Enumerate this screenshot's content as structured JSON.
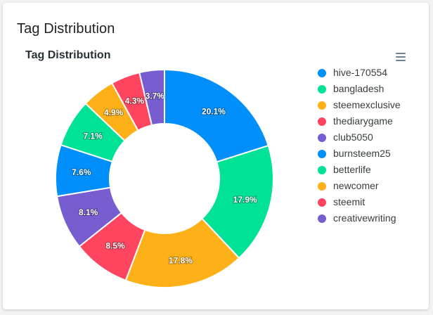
{
  "card": {
    "title": "Tag Distribution"
  },
  "chart_data": {
    "type": "pie",
    "variant": "donut",
    "title": "Tag Distribution",
    "labels": [
      "hive-170554",
      "bangladesh",
      "steemexclusive",
      "thediarygame",
      "club5050",
      "burnsteem25",
      "betterlife",
      "newcomer",
      "steemit",
      "creativewriting"
    ],
    "values": [
      20.1,
      17.9,
      17.8,
      8.5,
      8.1,
      7.6,
      7.1,
      4.9,
      4.3,
      3.7
    ],
    "value_labels": [
      "20.1%",
      "17.9%",
      "17.8%",
      "8.5%",
      "8.1%",
      "7.6%",
      "7.1%",
      "4.9%",
      "4.3%",
      "3.7%"
    ],
    "slice_colors": [
      "#008ffb",
      "#00e396",
      "#feb019",
      "#ff4560",
      "#775dd0",
      "#008ffb",
      "#00e396",
      "#feb019",
      "#ff4560",
      "#775dd0"
    ],
    "legend_position": "right",
    "start_angle": "top, clockwise"
  },
  "toolbar": {
    "menu_icon": "hamburger-menu-icon"
  }
}
